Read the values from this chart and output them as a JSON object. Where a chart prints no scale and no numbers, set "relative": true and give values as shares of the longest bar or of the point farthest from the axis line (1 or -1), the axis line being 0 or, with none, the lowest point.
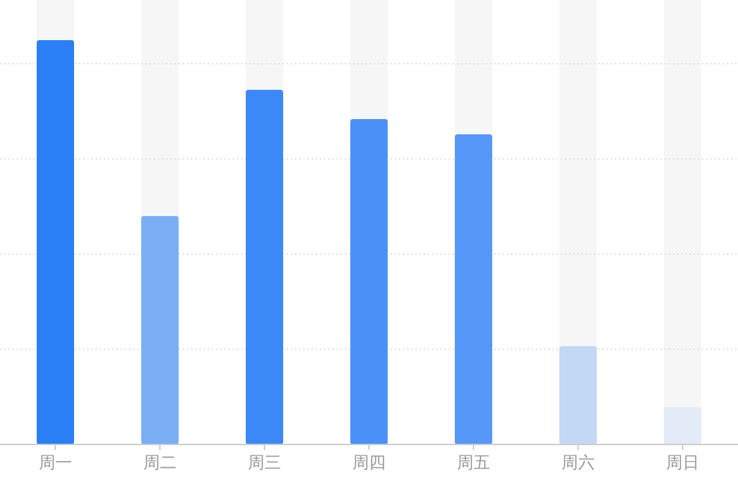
{
  "chart_data": {
    "type": "bar",
    "relative": true,
    "grid": true,
    "categories": [
      "周一",
      "周二",
      "周三",
      "周四",
      "周五",
      "周六",
      "周日"
    ],
    "values": [
      1,
      0.565,
      0.877,
      0.805,
      0.767,
      0.243,
      0.092
    ],
    "colors": [
      "#2a7ff7",
      "#7aaef5",
      "#3b89f7",
      "#4a91f7",
      "#5598f7",
      "#c3d8f5",
      "#e3eaf8"
    ]
  }
}
